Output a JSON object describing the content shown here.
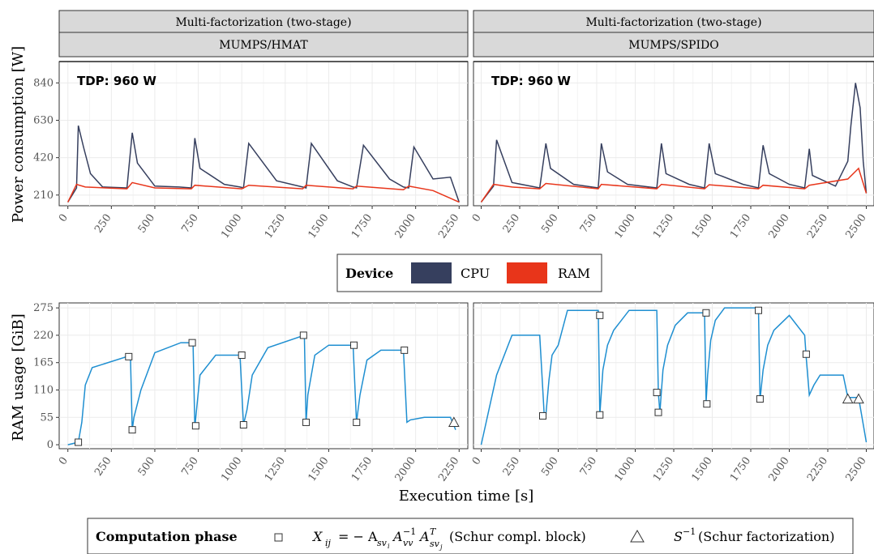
{
  "strips": {
    "left_top": "Multi-factorization (two-stage)",
    "left_sub": "MUMPS/HMAT",
    "right_top": "Multi-factorization (two-stage)",
    "right_sub": "MUMPS/SPIDO"
  },
  "tdp_label": "TDP: 960 W",
  "y_label_power": "Power consumption [W]",
  "y_label_ram": "RAM usage [GiB]",
  "x_label": "Execution time [s]",
  "device_legend": {
    "title": "Device",
    "cpu": "CPU",
    "ram": "RAM",
    "cpu_color": "#363f5e",
    "ram_color": "#e8351a"
  },
  "phase_legend": {
    "title": "Computation phase",
    "schur_block": "X",
    "schur_fact": "S",
    "ram_line_color": "#1f8fd1"
  },
  "chart_data": [
    {
      "type": "line",
      "title": "MUMPS/HMAT",
      "ylabel": "Power consumption [W]",
      "xlim": [
        -50,
        2300
      ],
      "ylim": [
        150,
        960
      ],
      "yticks": [
        210,
        420,
        630,
        840
      ],
      "xticks": [
        0,
        250,
        500,
        750,
        1000,
        1250,
        1500,
        1750,
        2000,
        2250
      ],
      "tdp": 960,
      "series": [
        {
          "name": "CPU",
          "x": [
            0,
            50,
            60,
            90,
            130,
            200,
            340,
            370,
            400,
            500,
            640,
            710,
            730,
            760,
            900,
            990,
            1010,
            1040,
            1200,
            1350,
            1370,
            1400,
            1550,
            1640,
            1660,
            1700,
            1850,
            1930,
            1960,
            1990,
            2100,
            2200,
            2250
          ],
          "y": [
            170,
            250,
            600,
            480,
            330,
            255,
            250,
            560,
            390,
            260,
            255,
            250,
            530,
            360,
            270,
            255,
            250,
            500,
            290,
            255,
            250,
            500,
            290,
            255,
            250,
            490,
            300,
            255,
            250,
            480,
            300,
            310,
            170
          ]
        },
        {
          "name": "RAM",
          "x": [
            0,
            50,
            100,
            340,
            370,
            500,
            710,
            730,
            1000,
            1040,
            1350,
            1370,
            1640,
            1660,
            1930,
            1960,
            2100,
            2250
          ],
          "y": [
            170,
            270,
            255,
            245,
            280,
            250,
            245,
            265,
            245,
            265,
            245,
            265,
            245,
            260,
            240,
            260,
            235,
            170
          ]
        }
      ]
    },
    {
      "type": "line",
      "title": "MUMPS/SPIDO",
      "ylabel": "Power consumption [W]",
      "xlim": [
        -50,
        2550
      ],
      "ylim": [
        150,
        960
      ],
      "yticks": [
        210,
        420,
        630,
        840
      ],
      "xticks": [
        0,
        250,
        500,
        750,
        1000,
        1250,
        1500,
        1750,
        2000,
        2250,
        2500
      ],
      "tdp": 960,
      "series": [
        {
          "name": "CPU",
          "x": [
            0,
            80,
            100,
            200,
            380,
            420,
            450,
            600,
            760,
            780,
            820,
            950,
            1140,
            1170,
            1200,
            1350,
            1450,
            1480,
            1520,
            1700,
            1800,
            1830,
            1870,
            2000,
            2100,
            2130,
            2150,
            2300,
            2380,
            2400,
            2430,
            2460,
            2480,
            2500
          ],
          "y": [
            170,
            260,
            520,
            280,
            250,
            500,
            360,
            270,
            250,
            500,
            340,
            270,
            250,
            500,
            330,
            270,
            250,
            500,
            330,
            270,
            250,
            490,
            330,
            270,
            250,
            470,
            320,
            260,
            400,
            600,
            840,
            700,
            400,
            220
          ]
        },
        {
          "name": "RAM",
          "x": [
            0,
            80,
            200,
            380,
            420,
            760,
            780,
            1140,
            1170,
            1450,
            1480,
            1800,
            1830,
            2100,
            2130,
            2380,
            2450,
            2500
          ],
          "y": [
            170,
            270,
            255,
            245,
            275,
            245,
            270,
            245,
            270,
            245,
            268,
            245,
            265,
            245,
            265,
            300,
            360,
            220
          ]
        }
      ]
    },
    {
      "type": "line",
      "title": "MUMPS/HMAT",
      "ylabel": "RAM usage [GiB]",
      "xlim": [
        -50,
        2300
      ],
      "ylim": [
        -8,
        285
      ],
      "yticks": [
        0,
        55,
        110,
        165,
        220,
        275
      ],
      "xticks": [
        0,
        250,
        500,
        750,
        1000,
        1250,
        1500,
        1750,
        2000,
        2250
      ],
      "series": [
        {
          "name": "RAM",
          "x": [
            0,
            60,
            80,
            100,
            140,
            340,
            360,
            370,
            380,
            420,
            500,
            650,
            720,
            730,
            740,
            760,
            850,
            990,
            1010,
            1030,
            1060,
            1150,
            1360,
            1370,
            1380,
            1420,
            1500,
            1640,
            1660,
            1680,
            1720,
            1800,
            1930,
            1950,
            1970,
            2050,
            2200,
            2230
          ],
          "y": [
            0,
            5,
            45,
            120,
            155,
            177,
            177,
            30,
            55,
            110,
            185,
            205,
            205,
            35,
            70,
            140,
            180,
            180,
            40,
            70,
            140,
            195,
            220,
            45,
            100,
            180,
            200,
            200,
            45,
            100,
            170,
            190,
            190,
            45,
            50,
            55,
            55,
            30
          ]
        }
      ],
      "markers": [
        {
          "shape": "square",
          "x": 60,
          "y": 5
        },
        {
          "shape": "square",
          "x": 350,
          "y": 177
        },
        {
          "shape": "square",
          "x": 370,
          "y": 30
        },
        {
          "shape": "square",
          "x": 715,
          "y": 205
        },
        {
          "shape": "square",
          "x": 735,
          "y": 38
        },
        {
          "shape": "square",
          "x": 1000,
          "y": 180
        },
        {
          "shape": "square",
          "x": 1010,
          "y": 40
        },
        {
          "shape": "square",
          "x": 1355,
          "y": 220
        },
        {
          "shape": "square",
          "x": 1370,
          "y": 45
        },
        {
          "shape": "square",
          "x": 1645,
          "y": 200
        },
        {
          "shape": "square",
          "x": 1660,
          "y": 45
        },
        {
          "shape": "square",
          "x": 1935,
          "y": 190
        },
        {
          "shape": "triangle",
          "x": 2220,
          "y": 45
        }
      ]
    },
    {
      "type": "line",
      "title": "MUMPS/SPIDO",
      "ylabel": "RAM usage [GiB]",
      "xlim": [
        -50,
        2550
      ],
      "ylim": [
        -8,
        285
      ],
      "yticks": [
        0,
        55,
        110,
        165,
        220,
        275
      ],
      "xticks": [
        0,
        250,
        500,
        750,
        1000,
        1250,
        1500,
        1750,
        2000,
        2250,
        2500
      ],
      "series": [
        {
          "name": "RAM",
          "x": [
            0,
            100,
            200,
            380,
            410,
            420,
            440,
            460,
            500,
            560,
            760,
            770,
            790,
            820,
            860,
            960,
            1140,
            1150,
            1160,
            1180,
            1210,
            1260,
            1340,
            1450,
            1460,
            1470,
            1490,
            1520,
            1580,
            1720,
            1800,
            1810,
            1830,
            1860,
            1900,
            2000,
            2100,
            2110,
            2130,
            2160,
            2200,
            2350,
            2380,
            2400,
            2450,
            2500
          ],
          "y": [
            0,
            140,
            220,
            220,
            55,
            60,
            130,
            180,
            200,
            270,
            270,
            60,
            150,
            200,
            230,
            270,
            270,
            105,
            65,
            150,
            200,
            240,
            265,
            265,
            85,
            140,
            210,
            250,
            275,
            275,
            275,
            90,
            150,
            200,
            230,
            260,
            220,
            175,
            100,
            120,
            140,
            140,
            95,
            95,
            95,
            5
          ]
        }
      ],
      "markers": [
        {
          "shape": "square",
          "x": 400,
          "y": 58
        },
        {
          "shape": "square",
          "x": 770,
          "y": 260
        },
        {
          "shape": "square",
          "x": 770,
          "y": 60
        },
        {
          "shape": "square",
          "x": 1140,
          "y": 105
        },
        {
          "shape": "square",
          "x": 1150,
          "y": 65
        },
        {
          "shape": "square",
          "x": 1460,
          "y": 265
        },
        {
          "shape": "square",
          "x": 1465,
          "y": 82
        },
        {
          "shape": "square",
          "x": 1800,
          "y": 270
        },
        {
          "shape": "square",
          "x": 1810,
          "y": 92
        },
        {
          "shape": "square",
          "x": 2110,
          "y": 182
        },
        {
          "shape": "triangle",
          "x": 2380,
          "y": 92
        },
        {
          "shape": "triangle",
          "x": 2450,
          "y": 92
        }
      ]
    }
  ]
}
